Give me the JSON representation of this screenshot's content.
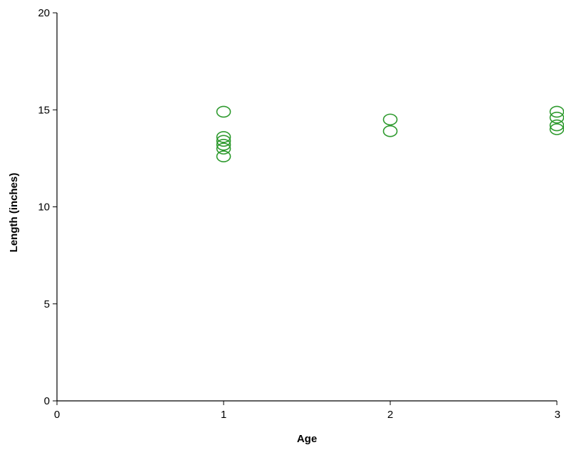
{
  "chart_data": {
    "type": "scatter",
    "title": "",
    "xlabel": "Age",
    "ylabel": "Length (inches)",
    "xlim": [
      0,
      3
    ],
    "ylim": [
      0,
      20
    ],
    "xticks": [
      "0",
      "1",
      "2",
      "3"
    ],
    "yticks": [
      "0",
      "5",
      "10",
      "15",
      "20"
    ],
    "grid": false,
    "legend": "none",
    "marker": "open-circle",
    "series": [
      {
        "color": "#2e9a2e",
        "points": [
          {
            "x": 1,
            "y": 14.9
          },
          {
            "x": 1,
            "y": 13.6
          },
          {
            "x": 1,
            "y": 13.4
          },
          {
            "x": 1,
            "y": 13.2
          },
          {
            "x": 1,
            "y": 13.0
          },
          {
            "x": 1,
            "y": 12.6
          },
          {
            "x": 2,
            "y": 14.5
          },
          {
            "x": 2,
            "y": 13.9
          },
          {
            "x": 3,
            "y": 14.9
          },
          {
            "x": 3,
            "y": 14.6
          },
          {
            "x": 3,
            "y": 14.2
          },
          {
            "x": 3,
            "y": 14.0
          }
        ]
      }
    ]
  }
}
